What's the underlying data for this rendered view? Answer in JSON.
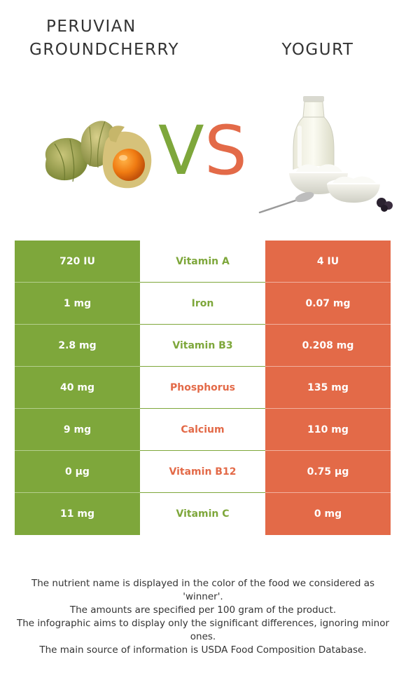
{
  "titles": {
    "left_line1": "PERUVIAN",
    "left_line2": "GROUNDCHERRY",
    "right": "YOGURT"
  },
  "vs": {
    "v": "V",
    "s": "S"
  },
  "colors": {
    "left": "#7ea73b",
    "right": "#e36a48"
  },
  "images": {
    "left": "peruvian-groundcherry-photo",
    "right": "yogurt-photo"
  },
  "rows": [
    {
      "left": "720 IU",
      "nutrient": "Vitamin A",
      "right": "4 IU",
      "winner": "left"
    },
    {
      "left": "1 mg",
      "nutrient": "Iron",
      "right": "0.07 mg",
      "winner": "left"
    },
    {
      "left": "2.8 mg",
      "nutrient": "Vitamin B3",
      "right": "0.208 mg",
      "winner": "left"
    },
    {
      "left": "40 mg",
      "nutrient": "Phosphorus",
      "right": "135 mg",
      "winner": "right"
    },
    {
      "left": "9 mg",
      "nutrient": "Calcium",
      "right": "110 mg",
      "winner": "right"
    },
    {
      "left": "0 µg",
      "nutrient": "Vitamin B12",
      "right": "0.75 µg",
      "winner": "right"
    },
    {
      "left": "11 mg",
      "nutrient": "Vitamin C",
      "right": "0 mg",
      "winner": "left"
    }
  ],
  "footnote": [
    "The nutrient name is displayed in the color of the food we considered as 'winner'.",
    "The amounts are specified per 100 gram of the product.",
    "The infographic aims to display only the significant differences, ignoring minor ones.",
    "The main source of information is USDA Food Composition Database."
  ]
}
